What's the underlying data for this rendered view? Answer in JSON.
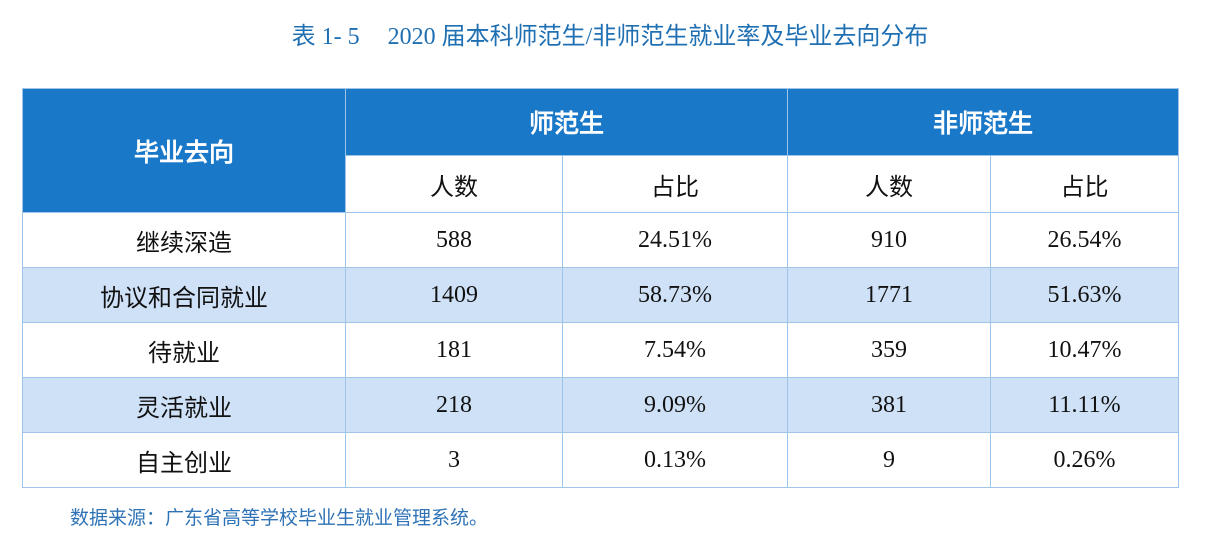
{
  "title": {
    "label": "表 1- 5",
    "text": "2020 届本科师范生/非师范生就业率及毕业去向分布"
  },
  "table": {
    "corner": "毕业去向",
    "groups": [
      "师范生",
      "非师范生"
    ],
    "subheaders": [
      "人数",
      "占比",
      "人数",
      "占比"
    ],
    "rows": [
      [
        "继续深造",
        "588",
        "24.51%",
        "910",
        "26.54%"
      ],
      [
        "协议和合同就业",
        "1409",
        "58.73%",
        "1771",
        "51.63%"
      ],
      [
        "待就业",
        "181",
        "7.54%",
        "359",
        "10.47%"
      ],
      [
        "灵活就业",
        "218",
        "9.09%",
        "381",
        "11.11%"
      ],
      [
        "自主创业",
        "3",
        "0.13%",
        "9",
        "0.26%"
      ]
    ]
  },
  "source": "数据来源：广东省高等学校毕业生就业管理系统。"
}
